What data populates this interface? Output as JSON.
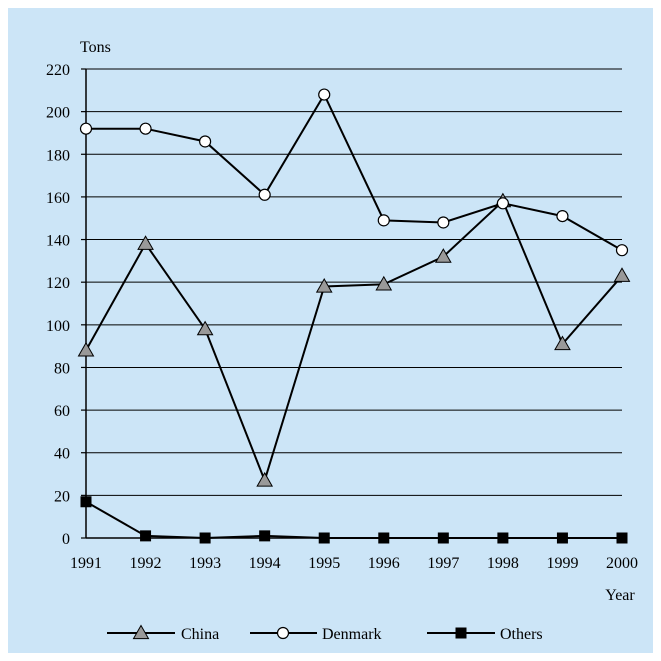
{
  "chart_data": {
    "type": "line",
    "title": "",
    "ylabel": "Tons",
    "xlabel": "Year",
    "categories": [
      "1991",
      "1992",
      "1993",
      "1994",
      "1995",
      "1996",
      "1997",
      "1998",
      "1999",
      "2000"
    ],
    "yticks": [
      0,
      20,
      40,
      60,
      80,
      100,
      120,
      140,
      160,
      180,
      200,
      220
    ],
    "ylim": [
      0,
      220
    ],
    "grid": true,
    "legend_position": "bottom",
    "series": [
      {
        "name": "China",
        "marker": "triangle-gray",
        "values": [
          88,
          138,
          98,
          27,
          118,
          119,
          132,
          158,
          91,
          123
        ]
      },
      {
        "name": "Denmark",
        "marker": "circle-white",
        "values": [
          192,
          192,
          186,
          161,
          208,
          149,
          148,
          157,
          151,
          135
        ]
      },
      {
        "name": "Others",
        "marker": "square-black",
        "values": [
          17,
          1,
          0,
          1,
          0,
          0,
          0,
          0,
          0,
          0
        ]
      }
    ]
  },
  "colors": {
    "background": "#cce5f7",
    "grid": "#000000",
    "line": "#000000",
    "china_marker": "#999999",
    "denmark_marker": "#ffffff",
    "others_marker": "#000000"
  }
}
